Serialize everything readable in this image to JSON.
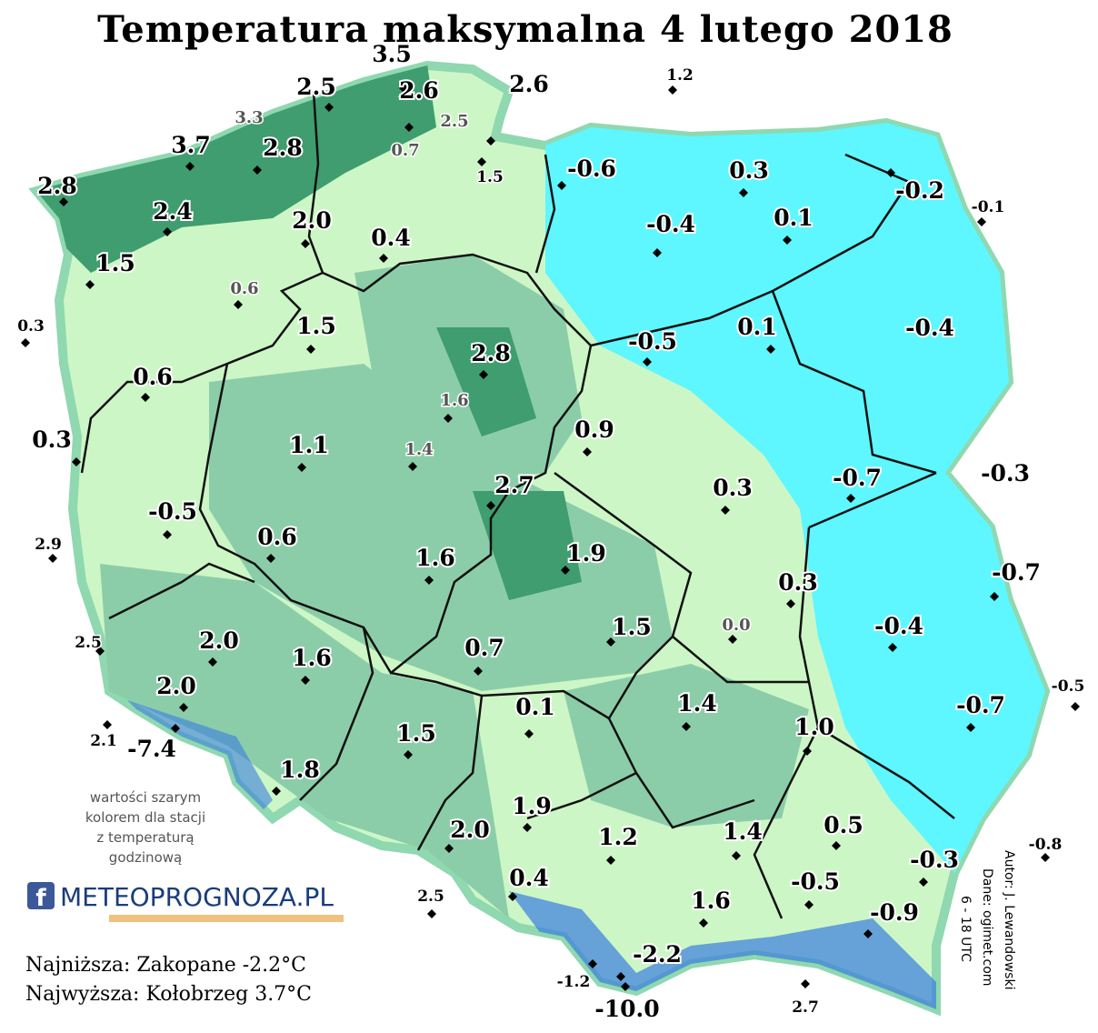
{
  "title": "Temperatura maksymalna 4 lutego 2018",
  "stations": [
    "3.5",
    "2.5",
    "2.6",
    "2.6",
    "1.2",
    "3.3",
    "2.5",
    "0.7",
    "1.5",
    "3.7",
    "2.8",
    "2.8",
    "2.4",
    "2.0",
    "0.4",
    "1.5",
    "0.6",
    "0.3",
    "1.5",
    "-0.6",
    "0.3",
    "-0.4",
    "0.1",
    "-0.2",
    "-0.1",
    "-0.4",
    "0.1",
    "-0.5",
    "2.8",
    "0.6",
    "1.6",
    "0.9",
    "0.3",
    "1.1",
    "1.4",
    "2.7",
    "-0.3",
    "-0.7",
    "0.3",
    "-0.5",
    "2.9",
    "0.6",
    "1.6",
    "1.9",
    "-0.7",
    "0.3",
    "0.0",
    "-0.4",
    "1.5",
    "2.5",
    "2.0",
    "1.6",
    "0.7",
    "-0.5",
    "2.0",
    "-0.7",
    "1.4",
    "0.1",
    "1.0",
    "-7.4",
    "2.1",
    "1.5",
    "1.8",
    "1.9",
    "2.0",
    "1.2",
    "1.4",
    "0.5",
    "-0.8",
    "-0.3",
    "0.4",
    "-0.5",
    "2.5",
    "1.6",
    "-0.9",
    "-2.2",
    "-1.2",
    "-10.0",
    "2.7"
  ],
  "note": [
    "wartości szarym",
    "kolorem dla stacji",
    "z temperaturą",
    "godzinową"
  ],
  "logo": "METEOPROGNOZA.PL",
  "summary": [
    "Najniższa: Zakopane -2.2°C",
    "Najwyższa: Kołobrzeg 3.7°C"
  ],
  "credits": [
    "Autor: J. Lewandowski",
    "Dane: ogimet.com",
    "6 - 18 UTC"
  ]
}
